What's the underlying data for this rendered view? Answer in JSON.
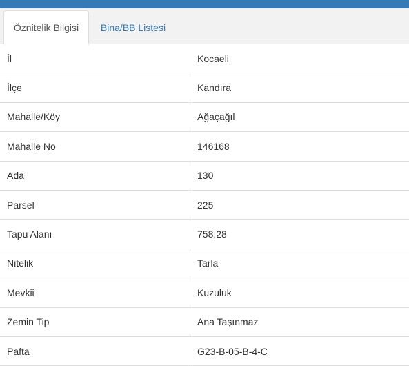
{
  "tabs": [
    {
      "label": "Öznitelik Bilgisi",
      "active": true
    },
    {
      "label": "Bina/BB Listesi",
      "active": false
    }
  ],
  "rows": [
    {
      "key": "İl",
      "value": "Kocaeli"
    },
    {
      "key": "İlçe",
      "value": "Kandıra"
    },
    {
      "key": "Mahalle/Köy",
      "value": "Ağaçağıl"
    },
    {
      "key": "Mahalle No",
      "value": "146168"
    },
    {
      "key": "Ada",
      "value": "130"
    },
    {
      "key": "Parsel",
      "value": "225"
    },
    {
      "key": "Tapu Alanı",
      "value": "758,28"
    },
    {
      "key": "Nitelik",
      "value": "Tarla"
    },
    {
      "key": "Mevkii",
      "value": "Kuzuluk"
    },
    {
      "key": "Zemin Tip",
      "value": "Ana Taşınmaz"
    },
    {
      "key": "Pafta",
      "value": "G23-B-05-B-4-C"
    }
  ],
  "colors": {
    "accent": "#337ab7",
    "border": "#dddddd",
    "tabbar_bg": "#f2f2f2"
  }
}
